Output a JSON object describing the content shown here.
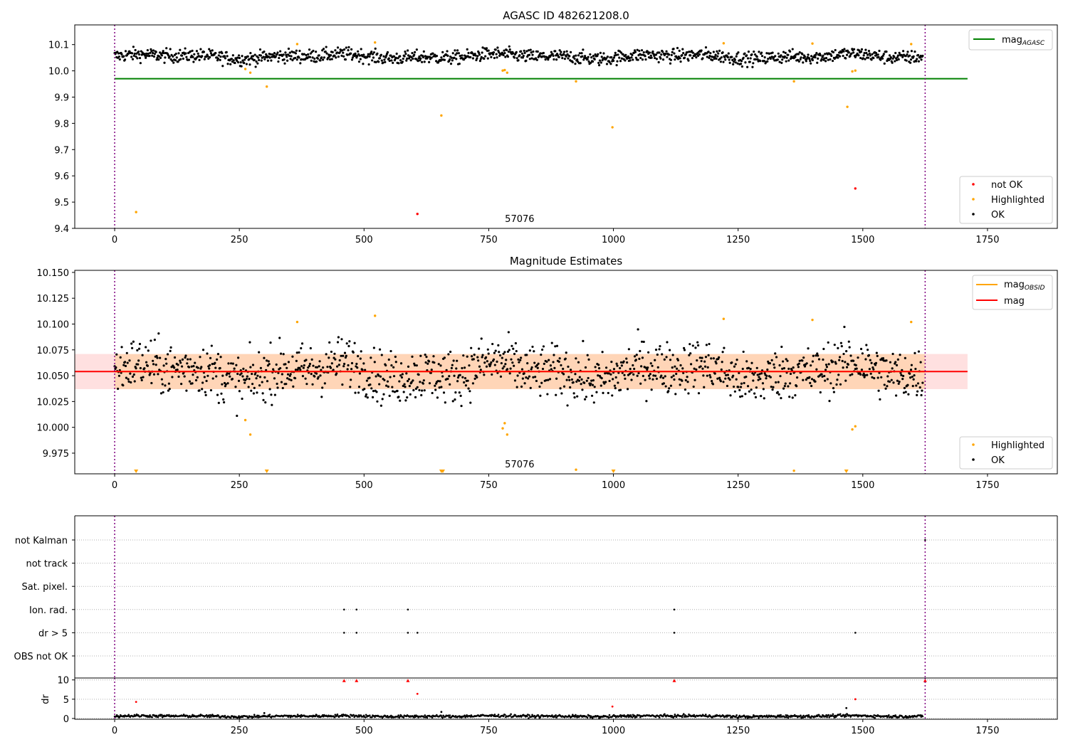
{
  "chart_data": [
    {
      "type": "scatter",
      "title": "AGASC ID 482621208.0",
      "xlabel": "",
      "ylabel": "",
      "xlim": [
        -80,
        1890
      ],
      "ylim": [
        9.4,
        10.175
      ],
      "x_ticks": [
        "0",
        "250",
        "500",
        "750",
        "1000",
        "1250",
        "1500",
        "1750"
      ],
      "y_ticks": [
        "9.4",
        "9.5",
        "9.6",
        "9.7",
        "9.8",
        "9.9",
        "10.0",
        "10.1"
      ],
      "obsid_label": "57076",
      "obs_boundaries": [
        0,
        1625
      ],
      "agasc_mag": 9.97,
      "agasc_line_x": [
        0,
        1710
      ],
      "ok_band": {
        "x_start": 0,
        "x_end": 1620,
        "center": 10.055,
        "spread": 0.018
      },
      "series": [
        {
          "name": "not OK",
          "color": "#ff0000",
          "points": [
            [
              607,
              9.455
            ],
            [
              1485,
              9.552
            ]
          ]
        },
        {
          "name": "Highlighted",
          "color": "#ffa500",
          "points": [
            [
              43,
              9.462
            ],
            [
              262,
              10.007
            ],
            [
              272,
              9.993
            ],
            [
              305,
              9.94
            ],
            [
              366,
              10.102
            ],
            [
              522,
              10.108
            ],
            [
              655,
              9.83
            ],
            [
              778,
              10.001
            ],
            [
              782,
              10.003
            ],
            [
              787,
              9.993
            ],
            [
              925,
              9.96
            ],
            [
              998,
              9.785
            ],
            [
              1221,
              10.105
            ],
            [
              1362,
              9.96
            ],
            [
              1399,
              10.104
            ],
            [
              1469,
              9.863
            ],
            [
              1479,
              9.998
            ],
            [
              1485,
              10.001
            ],
            [
              1597,
              10.102
            ]
          ]
        },
        {
          "name": "OK",
          "color": "#000000",
          "points": []
        }
      ],
      "legend": [
        {
          "label": "mag",
          "sub": "AGASC",
          "color": "#008000"
        },
        {
          "label": "not OK",
          "color": "#ff0000"
        },
        {
          "label": "Highlighted",
          "color": "#ffa500"
        },
        {
          "label": "OK",
          "color": "#000000"
        }
      ]
    },
    {
      "type": "scatter",
      "title": "Magnitude Estimates",
      "xlabel": "",
      "ylabel": "",
      "xlim": [
        -80,
        1890
      ],
      "ylim": [
        9.955,
        10.152
      ],
      "x_ticks": [
        "0",
        "250",
        "500",
        "750",
        "1000",
        "1250",
        "1500",
        "1750"
      ],
      "y_ticks": [
        "9.975",
        "10.000",
        "10.025",
        "10.050",
        "10.075",
        "10.100",
        "10.125",
        "10.150"
      ],
      "obsid_label": "57076",
      "obs_boundaries": [
        0,
        1625
      ],
      "mag_line": 10.054,
      "mag_band": [
        10.037,
        10.071
      ],
      "mag_obsid_band": [
        10.037,
        10.071
      ],
      "band_x": [
        -80,
        1710
      ],
      "obsid_band_x": [
        0,
        1625
      ],
      "ok_band": {
        "x_start": 0,
        "x_end": 1620,
        "center": 10.054,
        "spread": 0.018
      },
      "clipped_markers": [
        43,
        305,
        655,
        658,
        1000,
        1467
      ],
      "series": [
        {
          "name": "Highlighted",
          "color": "#ffa500",
          "points": [
            [
              262,
              10.007
            ],
            [
              272,
              9.993
            ],
            [
              366,
              10.102
            ],
            [
              522,
              10.108
            ],
            [
              778,
              9.999
            ],
            [
              782,
              10.004
            ],
            [
              787,
              9.993
            ],
            [
              925,
              9.959
            ],
            [
              1221,
              10.105
            ],
            [
              1362,
              9.958
            ],
            [
              1399,
              10.104
            ],
            [
              1479,
              9.998
            ],
            [
              1485,
              10.001
            ],
            [
              1597,
              10.102
            ]
          ]
        },
        {
          "name": "OK",
          "color": "#000000",
          "points": []
        }
      ],
      "legend": [
        {
          "label": "mag",
          "sub": "OBSID",
          "color": "#ffa500"
        },
        {
          "label": "mag",
          "color": "#ff0000"
        },
        {
          "label": "Highlighted",
          "color": "#ffa500"
        },
        {
          "label": "OK",
          "color": "#000000"
        }
      ]
    },
    {
      "type": "scatter",
      "title": "",
      "xlabel": "",
      "ylabel": "",
      "xlim": [
        -80,
        1890
      ],
      "x_ticks": [
        "0",
        "250",
        "500",
        "750",
        "1000",
        "1250",
        "1500",
        "1750"
      ],
      "flag_rows": [
        "not Kalman",
        "not track",
        "Sat. pixel.",
        "Ion. rad.",
        "dr > 5",
        "OBS not OK"
      ],
      "flag_points": {
        "not Kalman": [
          1625
        ],
        "Ion. rad.": [
          460,
          485,
          588,
          1122
        ],
        "dr > 5": [
          460,
          485,
          588,
          607,
          1122,
          1485
        ]
      },
      "obs_boundaries": [
        0,
        1625
      ]
    },
    {
      "type": "scatter",
      "title": "",
      "xlabel": "",
      "ylabel": "dr",
      "xlim": [
        -80,
        1890
      ],
      "ylim": [
        -0.2,
        10.5
      ],
      "x_ticks": [
        "0",
        "250",
        "500",
        "750",
        "1000",
        "1250",
        "1500",
        "1750"
      ],
      "y_ticks": [
        "0",
        "5",
        "10"
      ],
      "obs_boundaries": [
        0,
        1625
      ],
      "ok_band": {
        "x_start": 0,
        "x_end": 1620,
        "center": 0.6,
        "spread": 0.25
      },
      "series": [
        {
          "name": "not OK",
          "color": "#ff0000",
          "points": [
            [
              43,
              4.3
            ],
            [
              460,
              9.8
            ],
            [
              485,
              9.8
            ],
            [
              588,
              9.8
            ],
            [
              607,
              6.4
            ],
            [
              998,
              3.1
            ],
            [
              1122,
              9.8
            ],
            [
              1485,
              5.0
            ],
            [
              1625,
              9.8
            ]
          ]
        },
        {
          "name": "OK",
          "color": "#000000",
          "points": [
            [
              300,
              1.4
            ],
            [
              655,
              1.7
            ],
            [
              1467,
              2.7
            ]
          ]
        }
      ]
    }
  ]
}
